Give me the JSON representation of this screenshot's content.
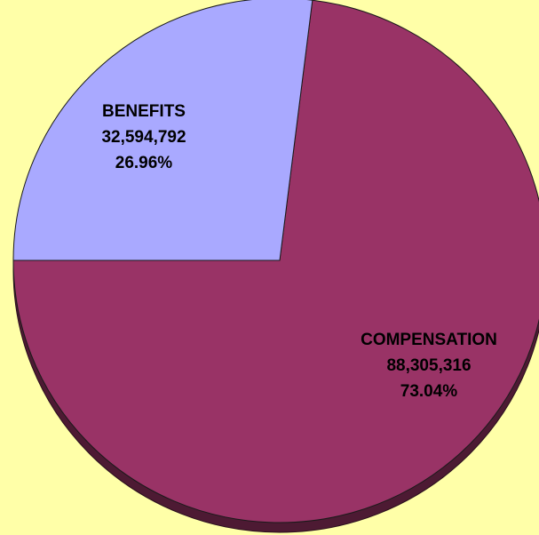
{
  "chart_data": {
    "type": "pie",
    "slices": [
      {
        "label": "BENEFITS",
        "value": 32594792,
        "value_text": "32,594,792",
        "percent_text": "26.96%",
        "color": "#A9A9FF"
      },
      {
        "label": "COMPENSATION",
        "value": 88305316,
        "value_text": "88,305,316",
        "percent_text": "73.04%",
        "color": "#993366"
      }
    ],
    "style": "3d",
    "shadow_color": "#4D1A33",
    "background": "#FFFFA8"
  }
}
